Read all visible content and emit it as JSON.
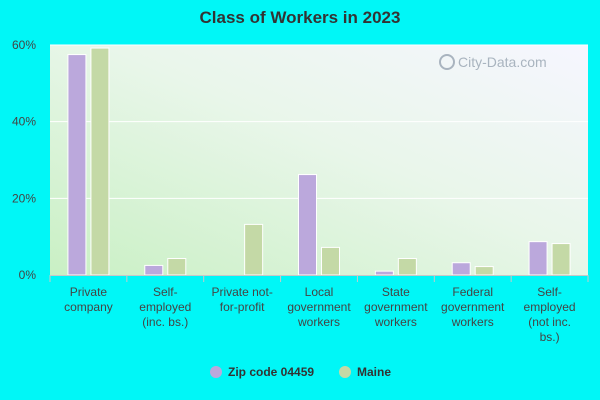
{
  "chart_data": {
    "type": "bar",
    "title": "Class of Workers in 2023",
    "categories": [
      [
        "Private",
        "company"
      ],
      [
        "Self-",
        "employed",
        "(inc. bs.)"
      ],
      [
        "Private not-",
        "for-profit"
      ],
      [
        "Local",
        "government",
        "workers"
      ],
      [
        "State",
        "government",
        "workers"
      ],
      [
        "Federal",
        "government",
        "workers"
      ],
      [
        "Self-",
        "employed",
        "(not inc.",
        "bs.)"
      ]
    ],
    "series": [
      {
        "name": "Zip code 04459",
        "color": "#bba8dc",
        "values": [
          57.5,
          2.5,
          null,
          26.2,
          1.0,
          3.2,
          8.7
        ]
      },
      {
        "name": "Maine",
        "color": "#c4d9a6",
        "values": [
          59.2,
          4.3,
          13.2,
          7.2,
          4.3,
          2.2,
          8.2
        ]
      }
    ],
    "yticks": [
      "0%",
      "20%",
      "40%",
      "60%"
    ],
    "ylim": [
      0,
      60
    ],
    "xlabel": "",
    "ylabel": "",
    "legend_position": "bottom",
    "watermark": "City-Data.com"
  }
}
